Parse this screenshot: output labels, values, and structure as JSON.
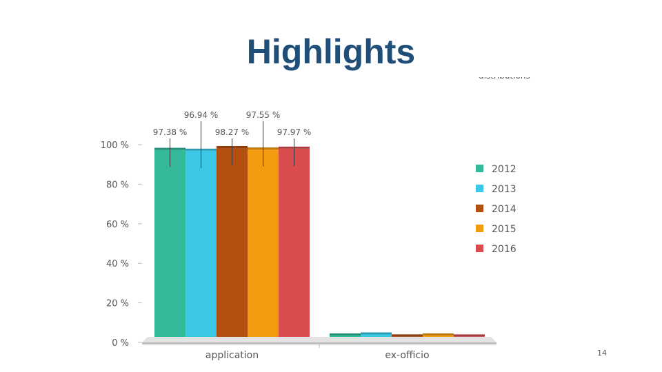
{
  "slide": {
    "title": "Highlights",
    "page_number": "14",
    "cropped_text": "distributions"
  },
  "chart_data": {
    "type": "bar",
    "categories": [
      "application",
      "ex-officio"
    ],
    "series": [
      {
        "name": "2012",
        "color": "#35b99b",
        "values": [
          97.38,
          3.5
        ]
      },
      {
        "name": "2013",
        "color": "#3ac8e6",
        "values": [
          96.94,
          4.0
        ]
      },
      {
        "name": "2014",
        "color": "#b3500f",
        "values": [
          98.27,
          3.0
        ]
      },
      {
        "name": "2015",
        "color": "#f39c12",
        "values": [
          97.55,
          3.5
        ]
      },
      {
        "name": "2016",
        "color": "#d94d4f",
        "values": [
          97.97,
          3.0
        ]
      }
    ],
    "data_labels": [
      "97.38 %",
      "96.94 %",
      "98.27 %",
      "97.55 %",
      "97.97 %"
    ],
    "y_ticks": [
      "0 %",
      "20 %",
      "40 %",
      "60 %",
      "80 %",
      "100 %"
    ],
    "ylim": [
      0,
      100
    ],
    "legend_position": "right",
    "grid": false
  }
}
